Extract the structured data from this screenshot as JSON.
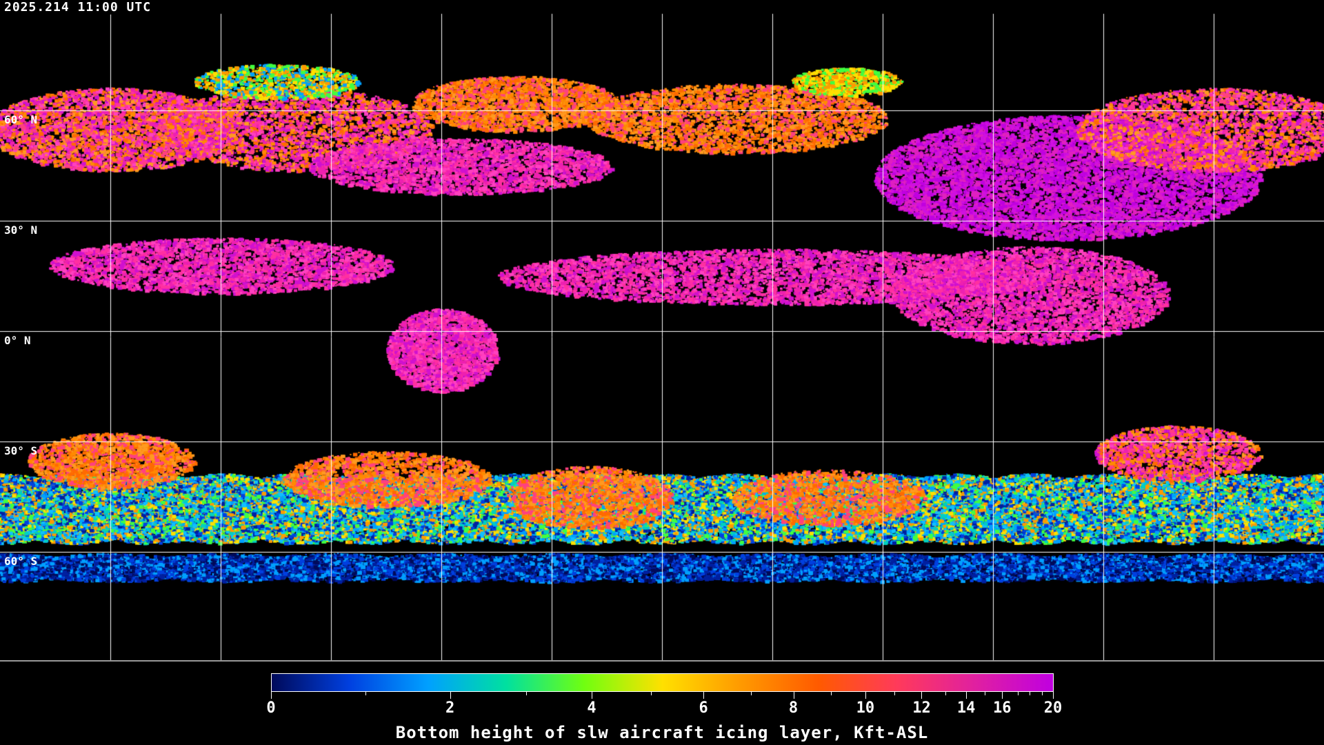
{
  "header": {
    "timestamp": "2025.214 11:00 UTC"
  },
  "map": {
    "projection": "equirectangular",
    "graticule_spacing_deg": 30,
    "lat_labels": [
      "60° N",
      "30° N",
      "0° N",
      "30° S",
      "60° S"
    ],
    "background_color": "#000000",
    "coastline_color": "#ffffff",
    "grid_color": "#ffffff"
  },
  "colorbar": {
    "title": "Bottom height of slw aircraft icing layer, Kft-ASL",
    "ticks": [
      {
        "value": 0,
        "label": "0"
      },
      {
        "value": 2,
        "label": "2"
      },
      {
        "value": 4,
        "label": "4"
      },
      {
        "value": 6,
        "label": "6"
      },
      {
        "value": 8,
        "label": "8"
      },
      {
        "value": 10,
        "label": "10"
      },
      {
        "value": 12,
        "label": "12"
      },
      {
        "value": 14,
        "label": "14"
      },
      {
        "value": 16,
        "label": "16"
      },
      {
        "value": 20,
        "label": "20"
      }
    ],
    "minor_ticks": [
      1,
      3,
      5,
      7,
      9,
      11,
      13,
      15,
      17,
      18,
      19
    ],
    "range": [
      0,
      20
    ],
    "colors": [
      "#000a5a",
      "#0040e0",
      "#00a0ff",
      "#00e0a0",
      "#70ff10",
      "#ffe000",
      "#ff9a00",
      "#ff5a00",
      "#ff3a5a",
      "#e020a0",
      "#c000e0"
    ]
  }
}
